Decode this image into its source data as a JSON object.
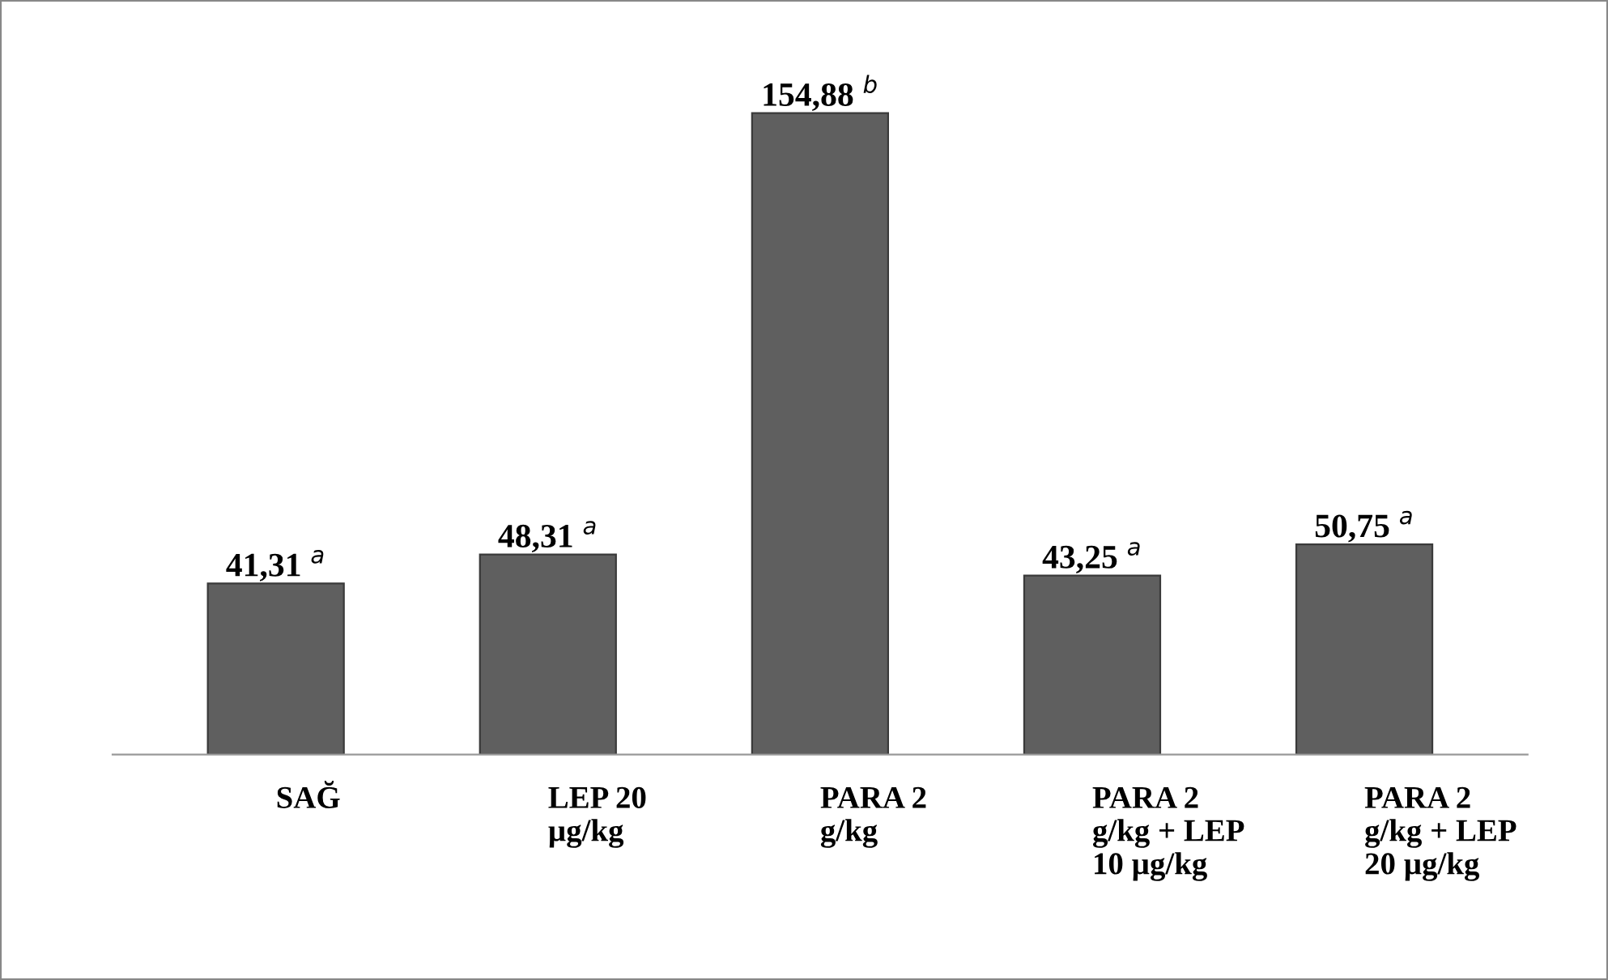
{
  "chart_data": {
    "type": "bar",
    "categories": [
      "SAĞ",
      "LEP 20\nµg/kg",
      "PARA 2\ng/kg",
      "PARA 2\ng/kg + LEP\n10 µg/kg",
      "PARA 2\ng/kg + LEP\n20 µg/kg"
    ],
    "values": [
      41.31,
      48.31,
      154.88,
      43.25,
      50.75
    ],
    "value_labels": [
      "41,31 $^{a}$",
      "48,31 $^{a}$",
      "154,88 $^{b}$",
      "43,25 $^{a}$",
      "50,75 $^{a}$"
    ],
    "color": "#5f5f5f",
    "grid": false,
    "legend": false
  }
}
